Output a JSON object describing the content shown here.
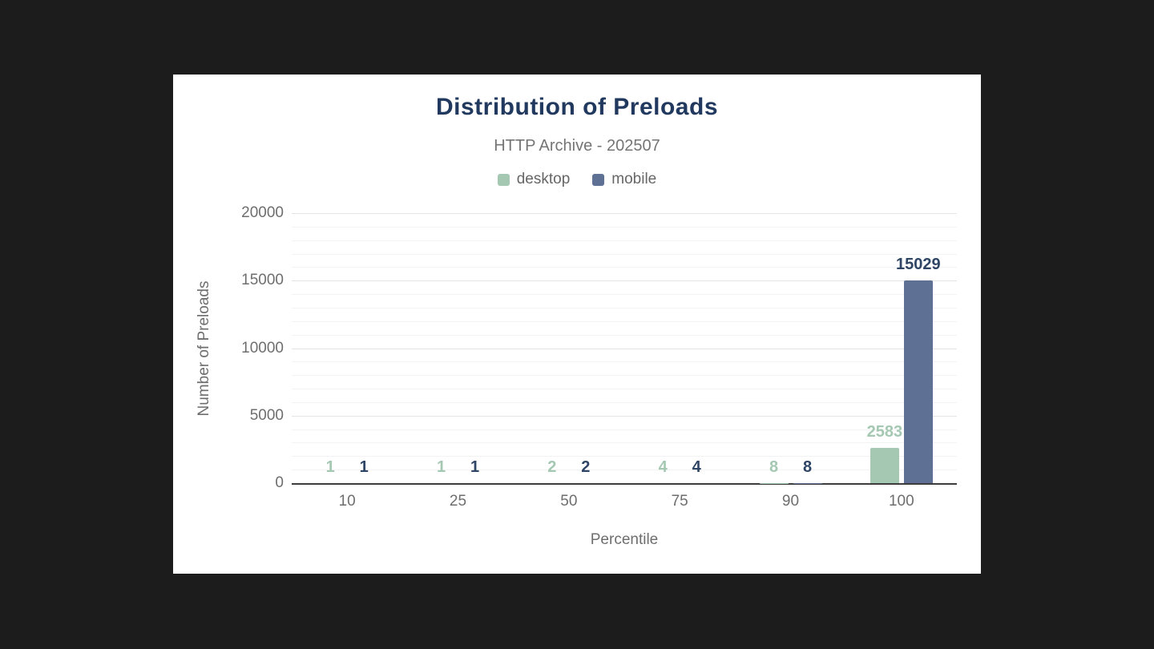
{
  "page": {
    "background_color": "#1c1c1c",
    "card_background_color": "#ffffff"
  },
  "chart_data": {
    "type": "bar",
    "title": "Distribution of Preloads",
    "subtitle": "HTTP Archive - 202507",
    "xlabel": "Percentile",
    "ylabel": "Number of Preloads",
    "categories": [
      "10",
      "25",
      "50",
      "75",
      "90",
      "100"
    ],
    "series": [
      {
        "name": "desktop",
        "color": "#a5c8b3",
        "label_color": "#a5c8b3",
        "values": [
          1,
          1,
          2,
          4,
          8,
          2583
        ]
      },
      {
        "name": "mobile",
        "color": "#5e7195",
        "label_color": "#2f4566",
        "values": [
          1,
          1,
          2,
          4,
          8,
          15029
        ]
      }
    ],
    "ylim": [
      0,
      20000
    ],
    "yticks": [
      0,
      5000,
      10000,
      15000,
      20000
    ],
    "minor_grid_step": 1000,
    "grid": true,
    "legend_position": "top",
    "title_color": "#21395f"
  }
}
